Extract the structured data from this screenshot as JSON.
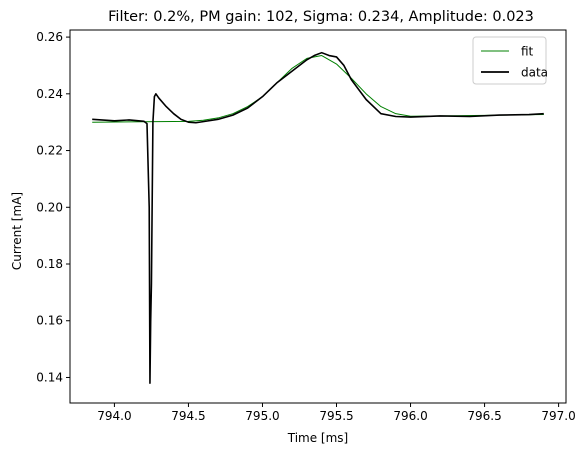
{
  "chart_data": {
    "type": "line",
    "title": "Filter: 0.2%, PM gain: 102, Sigma: 0.234, Amplitude: 0.023",
    "xlabel": "Time [ms]",
    "ylabel": "Current [mA]",
    "xlim": [
      793.7,
      797.05
    ],
    "ylim": [
      0.131,
      0.2625
    ],
    "xticks": [
      794.0,
      794.5,
      795.0,
      795.5,
      796.0,
      796.5,
      797.0
    ],
    "xtick_labels": [
      "794.0",
      "794.5",
      "795.0",
      "795.5",
      "796.0",
      "796.5",
      "797.0"
    ],
    "yticks": [
      0.14,
      0.16,
      0.18,
      0.2,
      0.22,
      0.24,
      0.26
    ],
    "ytick_labels": [
      "0.14",
      "0.16",
      "0.18",
      "0.20",
      "0.22",
      "0.24",
      "0.26"
    ],
    "grid": false,
    "legend_position": "top-right",
    "series": [
      {
        "name": "fit",
        "color": "#008000",
        "x": [
          793.85,
          794.5,
          794.6,
          794.7,
          794.8,
          794.9,
          795.0,
          795.1,
          795.2,
          795.3,
          795.4,
          795.5,
          795.6,
          795.7,
          795.8,
          795.9,
          796.0,
          796.5,
          796.9
        ],
        "y": [
          0.23,
          0.2303,
          0.2307,
          0.2315,
          0.233,
          0.2355,
          0.239,
          0.244,
          0.249,
          0.2525,
          0.2535,
          0.2505,
          0.2455,
          0.24,
          0.2355,
          0.233,
          0.2321,
          0.2324,
          0.2327
        ]
      },
      {
        "name": "data",
        "color": "#000000",
        "x": [
          793.85,
          794.0,
          794.1,
          794.2,
          794.22,
          794.235,
          794.24,
          794.245,
          794.25,
          794.26,
          794.27,
          794.28,
          794.3,
          794.35,
          794.4,
          794.45,
          794.5,
          794.55,
          794.6,
          794.7,
          794.8,
          794.9,
          795.0,
          795.1,
          795.2,
          795.3,
          795.35,
          795.4,
          795.45,
          795.5,
          795.55,
          795.6,
          795.7,
          795.8,
          795.9,
          796.0,
          796.2,
          796.4,
          796.6,
          796.8,
          796.9
        ],
        "y": [
          0.231,
          0.2305,
          0.2308,
          0.2303,
          0.2295,
          0.2,
          0.138,
          0.16,
          0.173,
          0.23,
          0.239,
          0.24,
          0.2385,
          0.2355,
          0.233,
          0.231,
          0.23,
          0.2298,
          0.2302,
          0.231,
          0.2325,
          0.235,
          0.239,
          0.244,
          0.248,
          0.252,
          0.2535,
          0.2545,
          0.2535,
          0.253,
          0.25,
          0.245,
          0.238,
          0.233,
          0.232,
          0.2318,
          0.2322,
          0.232,
          0.2325,
          0.2327,
          0.233
        ]
      }
    ]
  }
}
